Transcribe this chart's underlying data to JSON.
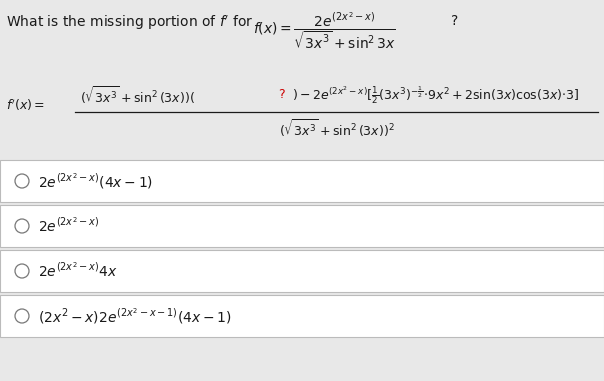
{
  "background_color": "#e8e8e8",
  "text_color": "#1a1a1a",
  "red_color": "#cc0000",
  "option_box_color": "#ffffff",
  "option_box_edge": "#bbbbbb",
  "circle_color": "#777777",
  "title_fontsize": 10.0,
  "formula_fontsize": 9.0,
  "option_fontsize": 10.0
}
